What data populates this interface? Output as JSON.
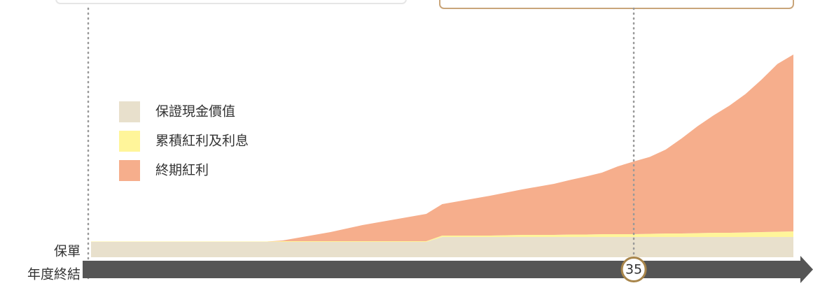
{
  "chart_data": {
    "type": "area",
    "stacked": true,
    "x": [
      1,
      2,
      3,
      4,
      5,
      6,
      7,
      8,
      9,
      10,
      11,
      12,
      13,
      14,
      15,
      16,
      17,
      18,
      19,
      20,
      21,
      22,
      23,
      24,
      25,
      26,
      27,
      28,
      29,
      30,
      31,
      32,
      33,
      34,
      35,
      36,
      37,
      38,
      39,
      40,
      41,
      42,
      43,
      44,
      45
    ],
    "xlim": [
      1,
      45
    ],
    "series": [
      {
        "name": "保證現金價值",
        "color": "#e8e0cc",
        "values": [
          22,
          22,
          22,
          22,
          22,
          22,
          22,
          22,
          22,
          22,
          22,
          22,
          22,
          22,
          22,
          22,
          22,
          22,
          22,
          22,
          22,
          22,
          29,
          29,
          29,
          29,
          29,
          29,
          29,
          29,
          29,
          29,
          29,
          29,
          29,
          29,
          29,
          29,
          29,
          29,
          29,
          29,
          29,
          29,
          29
        ]
      },
      {
        "name": "累積紅利及利息",
        "color": "#fff59a",
        "values": [
          0.5,
          0.5,
          0.5,
          0.5,
          0.5,
          0.5,
          0.5,
          0.5,
          0.5,
          0.5,
          0.5,
          0.5,
          1,
          1,
          1,
          1,
          1,
          1,
          1,
          1,
          1,
          1,
          2,
          2,
          2,
          2,
          2.5,
          3,
          3,
          3,
          3.5,
          3.5,
          4,
          4,
          4,
          4.5,
          5,
          5,
          5.5,
          6,
          6,
          6.5,
          7,
          7.5,
          8
        ]
      },
      {
        "name": "終期紅利",
        "color": "#f6ae8c",
        "values": [
          0,
          0,
          0,
          0,
          0,
          0,
          0,
          0,
          0,
          0,
          0,
          0,
          1,
          5,
          9,
          13,
          18,
          23,
          27,
          31,
          35,
          39,
          45,
          49,
          53,
          57,
          61,
          65,
          69,
          73,
          78,
          83,
          88,
          97,
          104,
          110,
          120,
          136,
          153,
          168,
          182,
          198,
          218,
          240,
          253
        ]
      }
    ],
    "axis_label_top": "保單",
    "axis_label_bottom": "年度終結",
    "marker": 35,
    "legend": "top-left"
  }
}
